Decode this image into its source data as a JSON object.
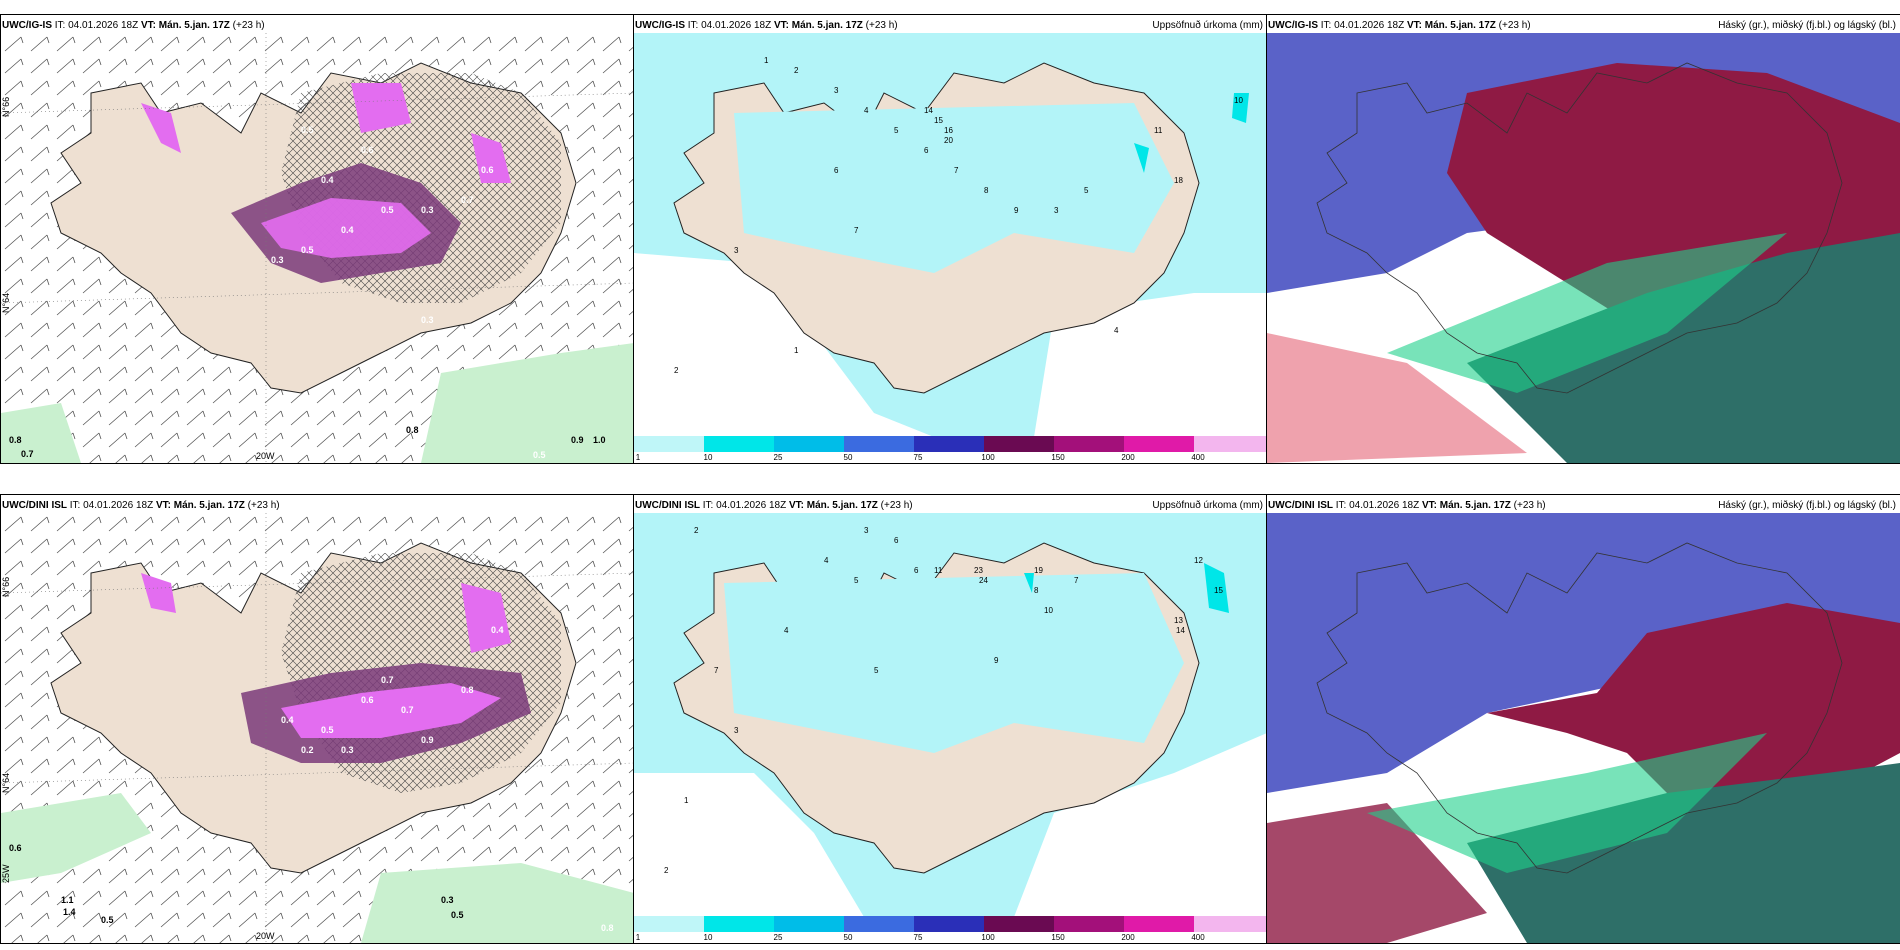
{
  "panels": {
    "p1": {
      "model": "UWC/IG-IS",
      "it": "IT: 04.01.2026 18Z",
      "vt": "VT: Mán. 5.jan. 17Z",
      "lead": "(+23 h)",
      "labels": [
        "0.5",
        "0.4",
        "0.6",
        "0.3",
        "0.5",
        "0.4",
        "0.3",
        "0.8",
        "0.7",
        "0.6",
        "0.5",
        "0.9",
        "1.0",
        "0.8",
        "0.7",
        "0.5",
        "0.3"
      ],
      "lat_labels": [
        "N°66",
        "N°64"
      ],
      "lon_label": "20W"
    },
    "p2": {
      "model": "UWC/IG-IS",
      "it": "IT: 04.01.2026 18Z",
      "vt": "VT: Mán. 5.jan. 17Z",
      "lead": "(+23 h)",
      "title": "Uppsöfnuð úrkoma (mm)",
      "numbers": [
        "1",
        "2",
        "3",
        "4",
        "5",
        "6",
        "7",
        "8",
        "9",
        "10",
        "11",
        "14",
        "15",
        "16",
        "18",
        "20",
        "3",
        "2",
        "4",
        "5",
        "3",
        "1",
        "6",
        "7"
      ]
    },
    "p3": {
      "model": "UWC/IG-IS",
      "it": "IT: 04.01.2026 18Z",
      "vt": "VT: Mán. 5.jan. 17Z",
      "lead": "(+23 h)",
      "title": "Háský (gr.), miðský (fj.bl.) og lágský (bl.)"
    },
    "p4": {
      "model": "UWC/DINI ISL",
      "it": "IT: 04.01.2026 18Z",
      "vt": "VT: Mán. 5.jan. 17Z",
      "lead": "(+23 h)",
      "labels": [
        "0.4",
        "0.5",
        "0.6",
        "0.7",
        "0.3",
        "0.9",
        "0.8",
        "0.2",
        "1.1",
        "1.4",
        "0.5",
        "0.6",
        "0.3",
        "0.8",
        "0.4",
        "0.7",
        "0.5"
      ],
      "lat_labels": [
        "N°66",
        "N°64"
      ],
      "lon_label": "20W",
      "lon_label2": "25W"
    },
    "p5": {
      "model": "UWC/DINI ISL",
      "it": "IT: 04.01.2026 18Z",
      "vt": "VT: Mán. 5.jan. 17Z",
      "lead": "(+23 h)",
      "title": "Uppsöfnuð úrkoma (mm)",
      "numbers": [
        "2",
        "3",
        "4",
        "5",
        "6",
        "7",
        "8",
        "10",
        "11",
        "12",
        "13",
        "14",
        "15",
        "19",
        "23",
        "24",
        "3",
        "4",
        "5",
        "2",
        "1",
        "6",
        "7",
        "9"
      ]
    },
    "p6": {
      "model": "UWC/DINI ISL",
      "it": "IT: 04.01.2026 18Z",
      "vt": "VT: Mán. 5.jan. 17Z",
      "lead": "(+23 h)",
      "title": "Háský (gr.), miðský (fj.bl.) og lágský (bl.)"
    }
  },
  "colorbar": {
    "ticks": [
      "1",
      "10",
      "25",
      "50",
      "75",
      "100",
      "150",
      "200",
      "400"
    ],
    "colors": [
      "#bff6f8",
      "#00e6e8",
      "#00bde8",
      "#3b6be0",
      "#2a2fb8",
      "#6a0a52",
      "#a3107a",
      "#e01aa8",
      "#f3b6ee"
    ]
  },
  "colors": {
    "land": "#eee0d2",
    "precip_land_sea": "#b3f4f8",
    "snow_purple": "#e36df0",
    "snow_dark": "#7a3a7a",
    "rain_green": "#c9f0cf",
    "high_cloud": "#5a62c8",
    "mid_cloud": "#8f1a44",
    "low_cloud": "#2e6f68"
  }
}
